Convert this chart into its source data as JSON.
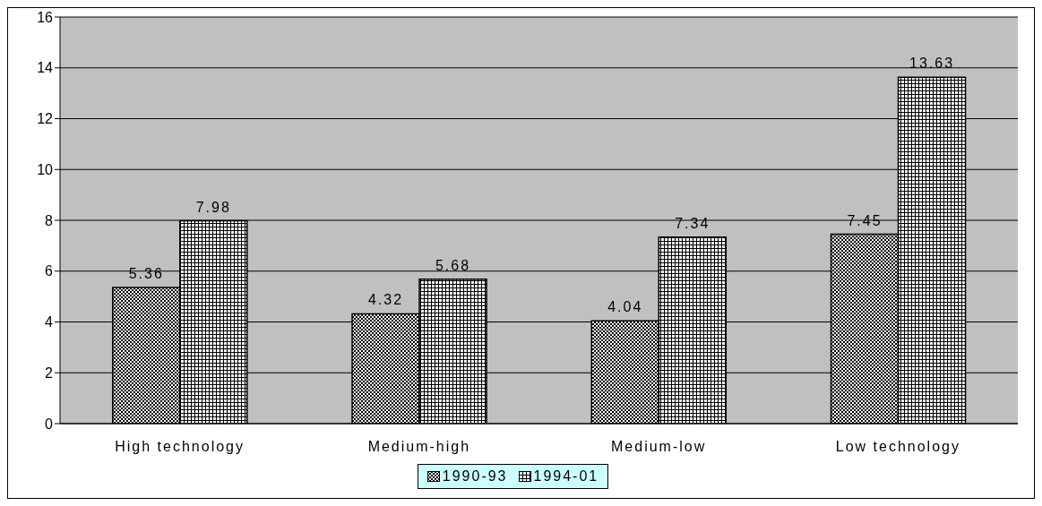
{
  "chart_data": {
    "type": "bar",
    "categories": [
      "High technology",
      "Medium-high",
      "Medium-low",
      "Low technology"
    ],
    "series": [
      {
        "name": "1990-93",
        "color": "#000000",
        "values": [
          5.36,
          4.32,
          4.04,
          7.45
        ]
      },
      {
        "name": "1994-01",
        "color": "#000000",
        "values": [
          7.98,
          5.68,
          7.34,
          13.63
        ]
      }
    ],
    "ylim": [
      0,
      16
    ],
    "yticks": [
      0,
      2,
      4,
      6,
      8,
      10,
      12,
      14,
      16
    ],
    "grid": "y",
    "legend": "bottom",
    "data_labels": true
  }
}
